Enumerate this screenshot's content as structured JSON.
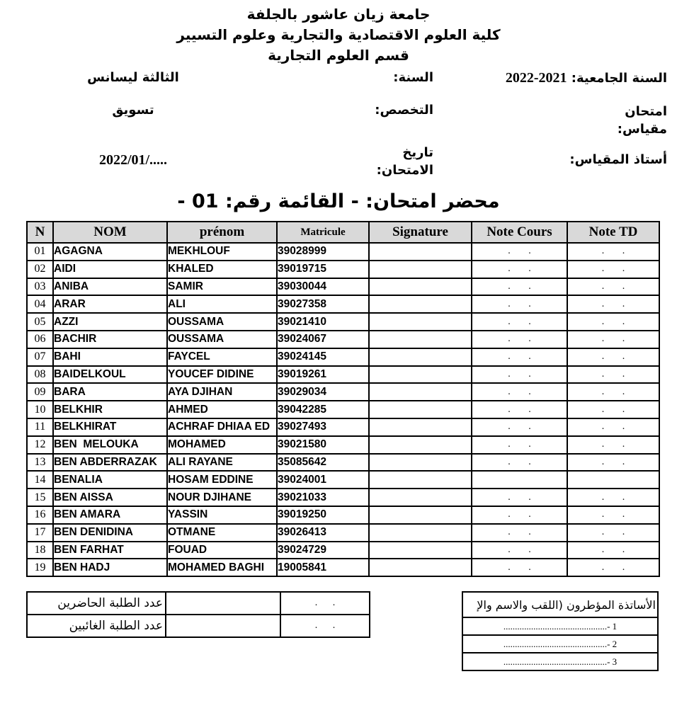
{
  "header": {
    "university": "جامعة زيان عاشور بالجلفة",
    "faculty": "كلية العلوم الاقتصادية والتجارية وعلوم التسيير",
    "department": "قسم العلوم التجارية"
  },
  "info": {
    "academic_year_label": "السنة الجامعية:",
    "academic_year_value": "2022-2021",
    "year_label": "السنة:",
    "year_value": "الثالثة ليسانس",
    "exam_label_line1": "امتحان",
    "exam_label_line2": "مقياس:",
    "speciality_label": "التخصص:",
    "speciality_value": "تسويق",
    "professor_label": "أستاذ المقياس:",
    "date_label_line1": "تاريخ",
    "date_label_line2": "الامتحان:",
    "date_value": "2022/01/....."
  },
  "title": "محضر امتحان: - القائمة رقم: 01 -",
  "table": {
    "headers": [
      "N",
      "NOM",
      "prénom",
      "Matricule",
      "Signature",
      "Note Cours",
      "Note TD"
    ],
    "rows": [
      {
        "n": "01",
        "nom": "AGAGNA",
        "prenom": "MEKHLOUF",
        "matricule": "39028999",
        "signature": "",
        "note_cours": ". .",
        "note_td": ". ."
      },
      {
        "n": "02",
        "nom": "AIDI",
        "prenom": "KHALED",
        "matricule": "39019715",
        "signature": "",
        "note_cours": ". .",
        "note_td": ". ."
      },
      {
        "n": "03",
        "nom": "ANIBA",
        "prenom": "SAMIR",
        "matricule": "39030044",
        "signature": "",
        "note_cours": ". .",
        "note_td": ". ."
      },
      {
        "n": "04",
        "nom": "ARAR",
        "prenom": "ALI",
        "matricule": "39027358",
        "signature": "",
        "note_cours": ". .",
        "note_td": ". ."
      },
      {
        "n": "05",
        "nom": "AZZI",
        "prenom": "OUSSAMA",
        "matricule": "39021410",
        "signature": "",
        "note_cours": ". .",
        "note_td": ". ."
      },
      {
        "n": "06",
        "nom": "BACHIR",
        "prenom": "OUSSAMA",
        "matricule": "39024067",
        "signature": "",
        "note_cours": ". .",
        "note_td": ". ."
      },
      {
        "n": "07",
        "nom": "BAHI",
        "prenom": "FAYCEL",
        "matricule": "39024145",
        "signature": "",
        "note_cours": ". .",
        "note_td": ". ."
      },
      {
        "n": "08",
        "nom": "BAIDELKOUL",
        "prenom": "YOUCEF DIDINE",
        "matricule": "39019261",
        "signature": "",
        "note_cours": ". .",
        "note_td": ". ."
      },
      {
        "n": "09",
        "nom": "BARA",
        "prenom": "AYA DJIHAN",
        "matricule": "39029034",
        "signature": "",
        "note_cours": ". .",
        "note_td": ". ."
      },
      {
        "n": "10",
        "nom": "BELKHIR",
        "prenom": "AHMED",
        "matricule": "39042285",
        "signature": "",
        "note_cours": ". .",
        "note_td": ". ."
      },
      {
        "n": "11",
        "nom": "BELKHIRAT",
        "prenom": "ACHRAF DHIAA ED",
        "matricule": "39027493",
        "signature": "",
        "note_cours": ". .",
        "note_td": ". ."
      },
      {
        "n": "12",
        "nom": "BEN  MELOUKA",
        "prenom": "MOHAMED",
        "matricule": "39021580",
        "signature": "",
        "note_cours": ". .",
        "note_td": ". ."
      },
      {
        "n": "13",
        "nom": "BEN ABDERRAZAK",
        "prenom": "ALI RAYANE",
        "matricule": "35085642",
        "signature": "",
        "note_cours": ". .",
        "note_td": ". ."
      },
      {
        "n": "14",
        "nom": "BENALIA",
        "prenom": "HOSAM EDDINE",
        "matricule": "39024001",
        "signature": "",
        "note_cours": "",
        "note_td": ""
      },
      {
        "n": "15",
        "nom": "BEN AISSA",
        "prenom": "NOUR DJIHANE",
        "matricule": "39021033",
        "signature": "",
        "note_cours": ". .",
        "note_td": ". ."
      },
      {
        "n": "16",
        "nom": "BEN AMARA",
        "prenom": "YASSIN",
        "matricule": "39019250",
        "signature": "",
        "note_cours": ". .",
        "note_td": ". ."
      },
      {
        "n": "17",
        "nom": "BEN DENIDINA",
        "prenom": "OTMANE",
        "matricule": "39026413",
        "signature": "",
        "note_cours": ". .",
        "note_td": ". ."
      },
      {
        "n": "18",
        "nom": "BEN FARHAT",
        "prenom": "FOUAD",
        "matricule": "39024729",
        "signature": "",
        "note_cours": ". .",
        "note_td": ". ."
      },
      {
        "n": "19",
        "nom": "BEN HADJ",
        "prenom": "MOHAMED BAGHI",
        "matricule": "19005841",
        "signature": "",
        "note_cours": ". .",
        "note_td": ". ."
      }
    ]
  },
  "summary": {
    "present_label": "عدد الطلبة الحاضرين",
    "present_value": "",
    "present_dots": ". .",
    "absent_label": "عدد الطلبة الغائبين",
    "absent_value": "",
    "absent_dots": ". ."
  },
  "supervisors": {
    "header": "الأساتذة المؤطرون (اللقب والاسم والإ",
    "lines": [
      ".............................................- 1",
      ".............................................- 2",
      ".............................................- 3"
    ]
  }
}
